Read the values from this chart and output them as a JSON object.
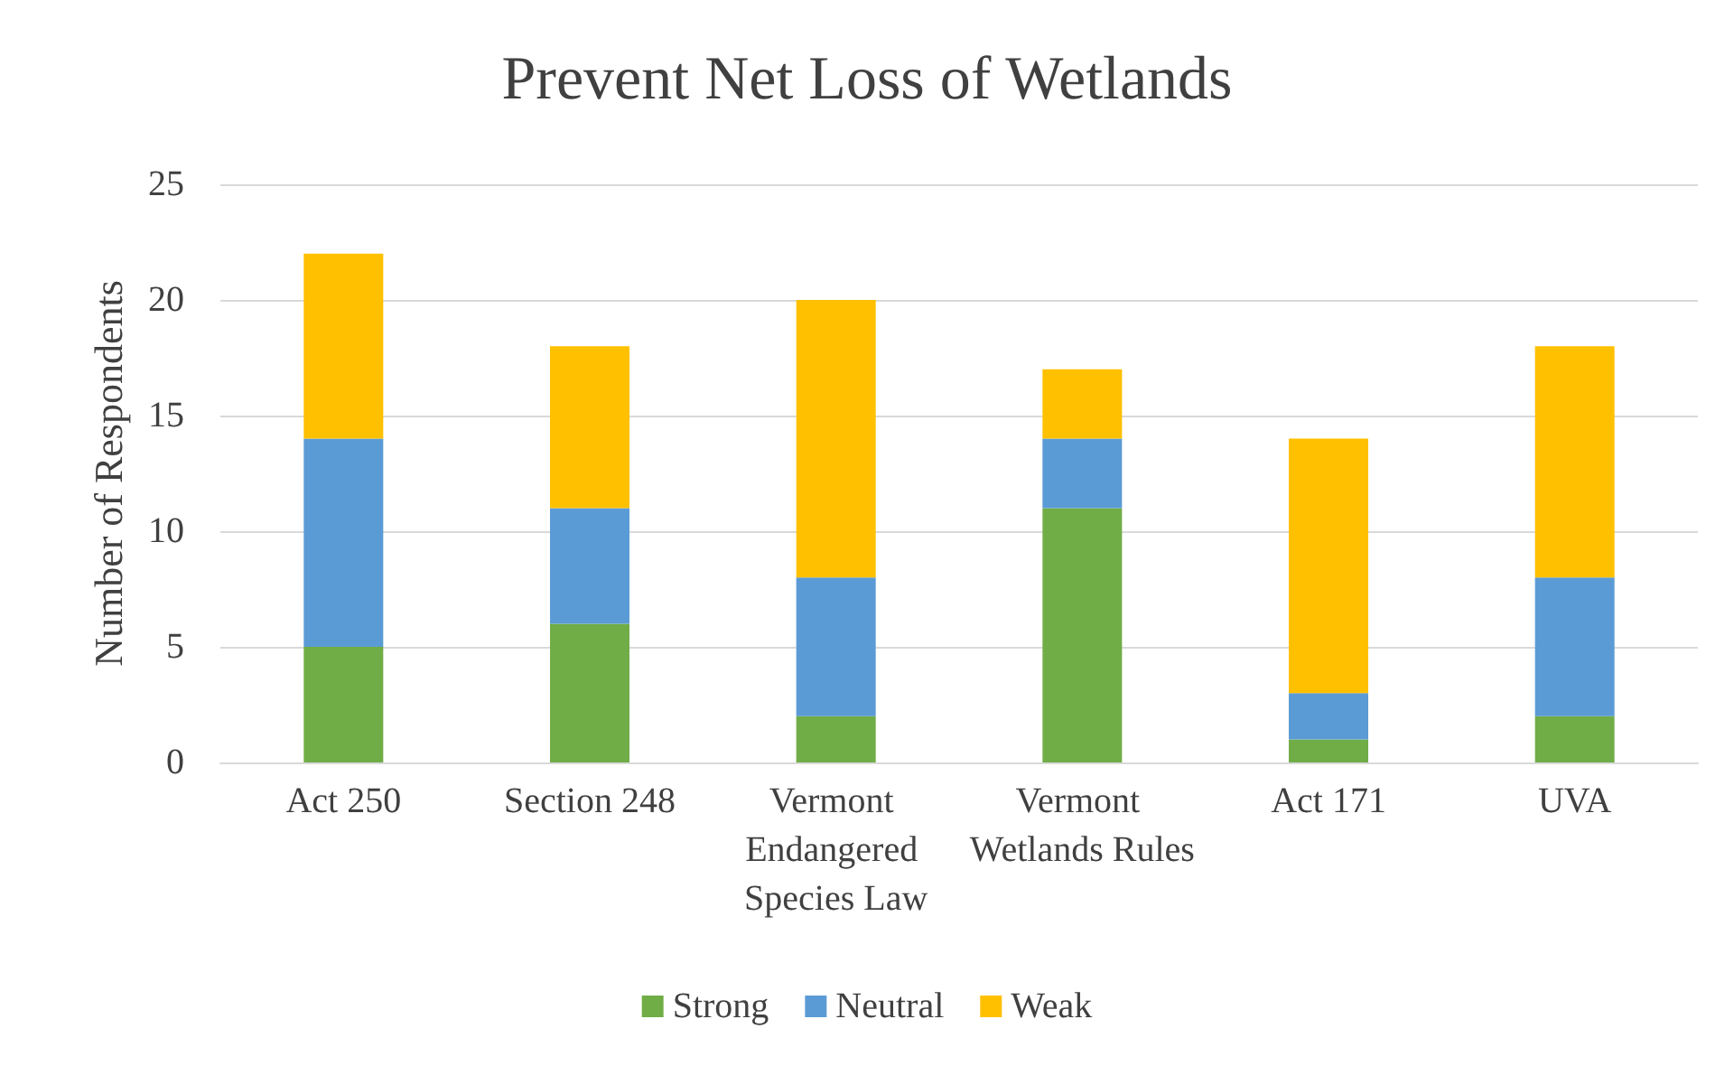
{
  "chart_data": {
    "type": "bar",
    "title": "Prevent Net Loss of Wetlands",
    "ylabel": "Number of Respondents",
    "categories": [
      "Act 250",
      "Section 248",
      "Vermont Endangered Species Law",
      "Vermont Wetlands Rules",
      "Act 171",
      "UVA"
    ],
    "series": [
      {
        "name": "Strong",
        "color": "#70ad47",
        "values": [
          5,
          6,
          2,
          11,
          1,
          2
        ]
      },
      {
        "name": "Neutral",
        "color": "#5b9bd5",
        "values": [
          9,
          5,
          6,
          3,
          2,
          6
        ]
      },
      {
        "name": "Weak",
        "color": "#ffc000",
        "values": [
          8,
          7,
          12,
          3,
          11,
          10
        ]
      }
    ],
    "stacked": true,
    "ylim": [
      0,
      25
    ],
    "yticks": [
      0,
      5,
      10,
      15,
      20,
      25
    ],
    "grid": "y",
    "legend": "bottom"
  }
}
